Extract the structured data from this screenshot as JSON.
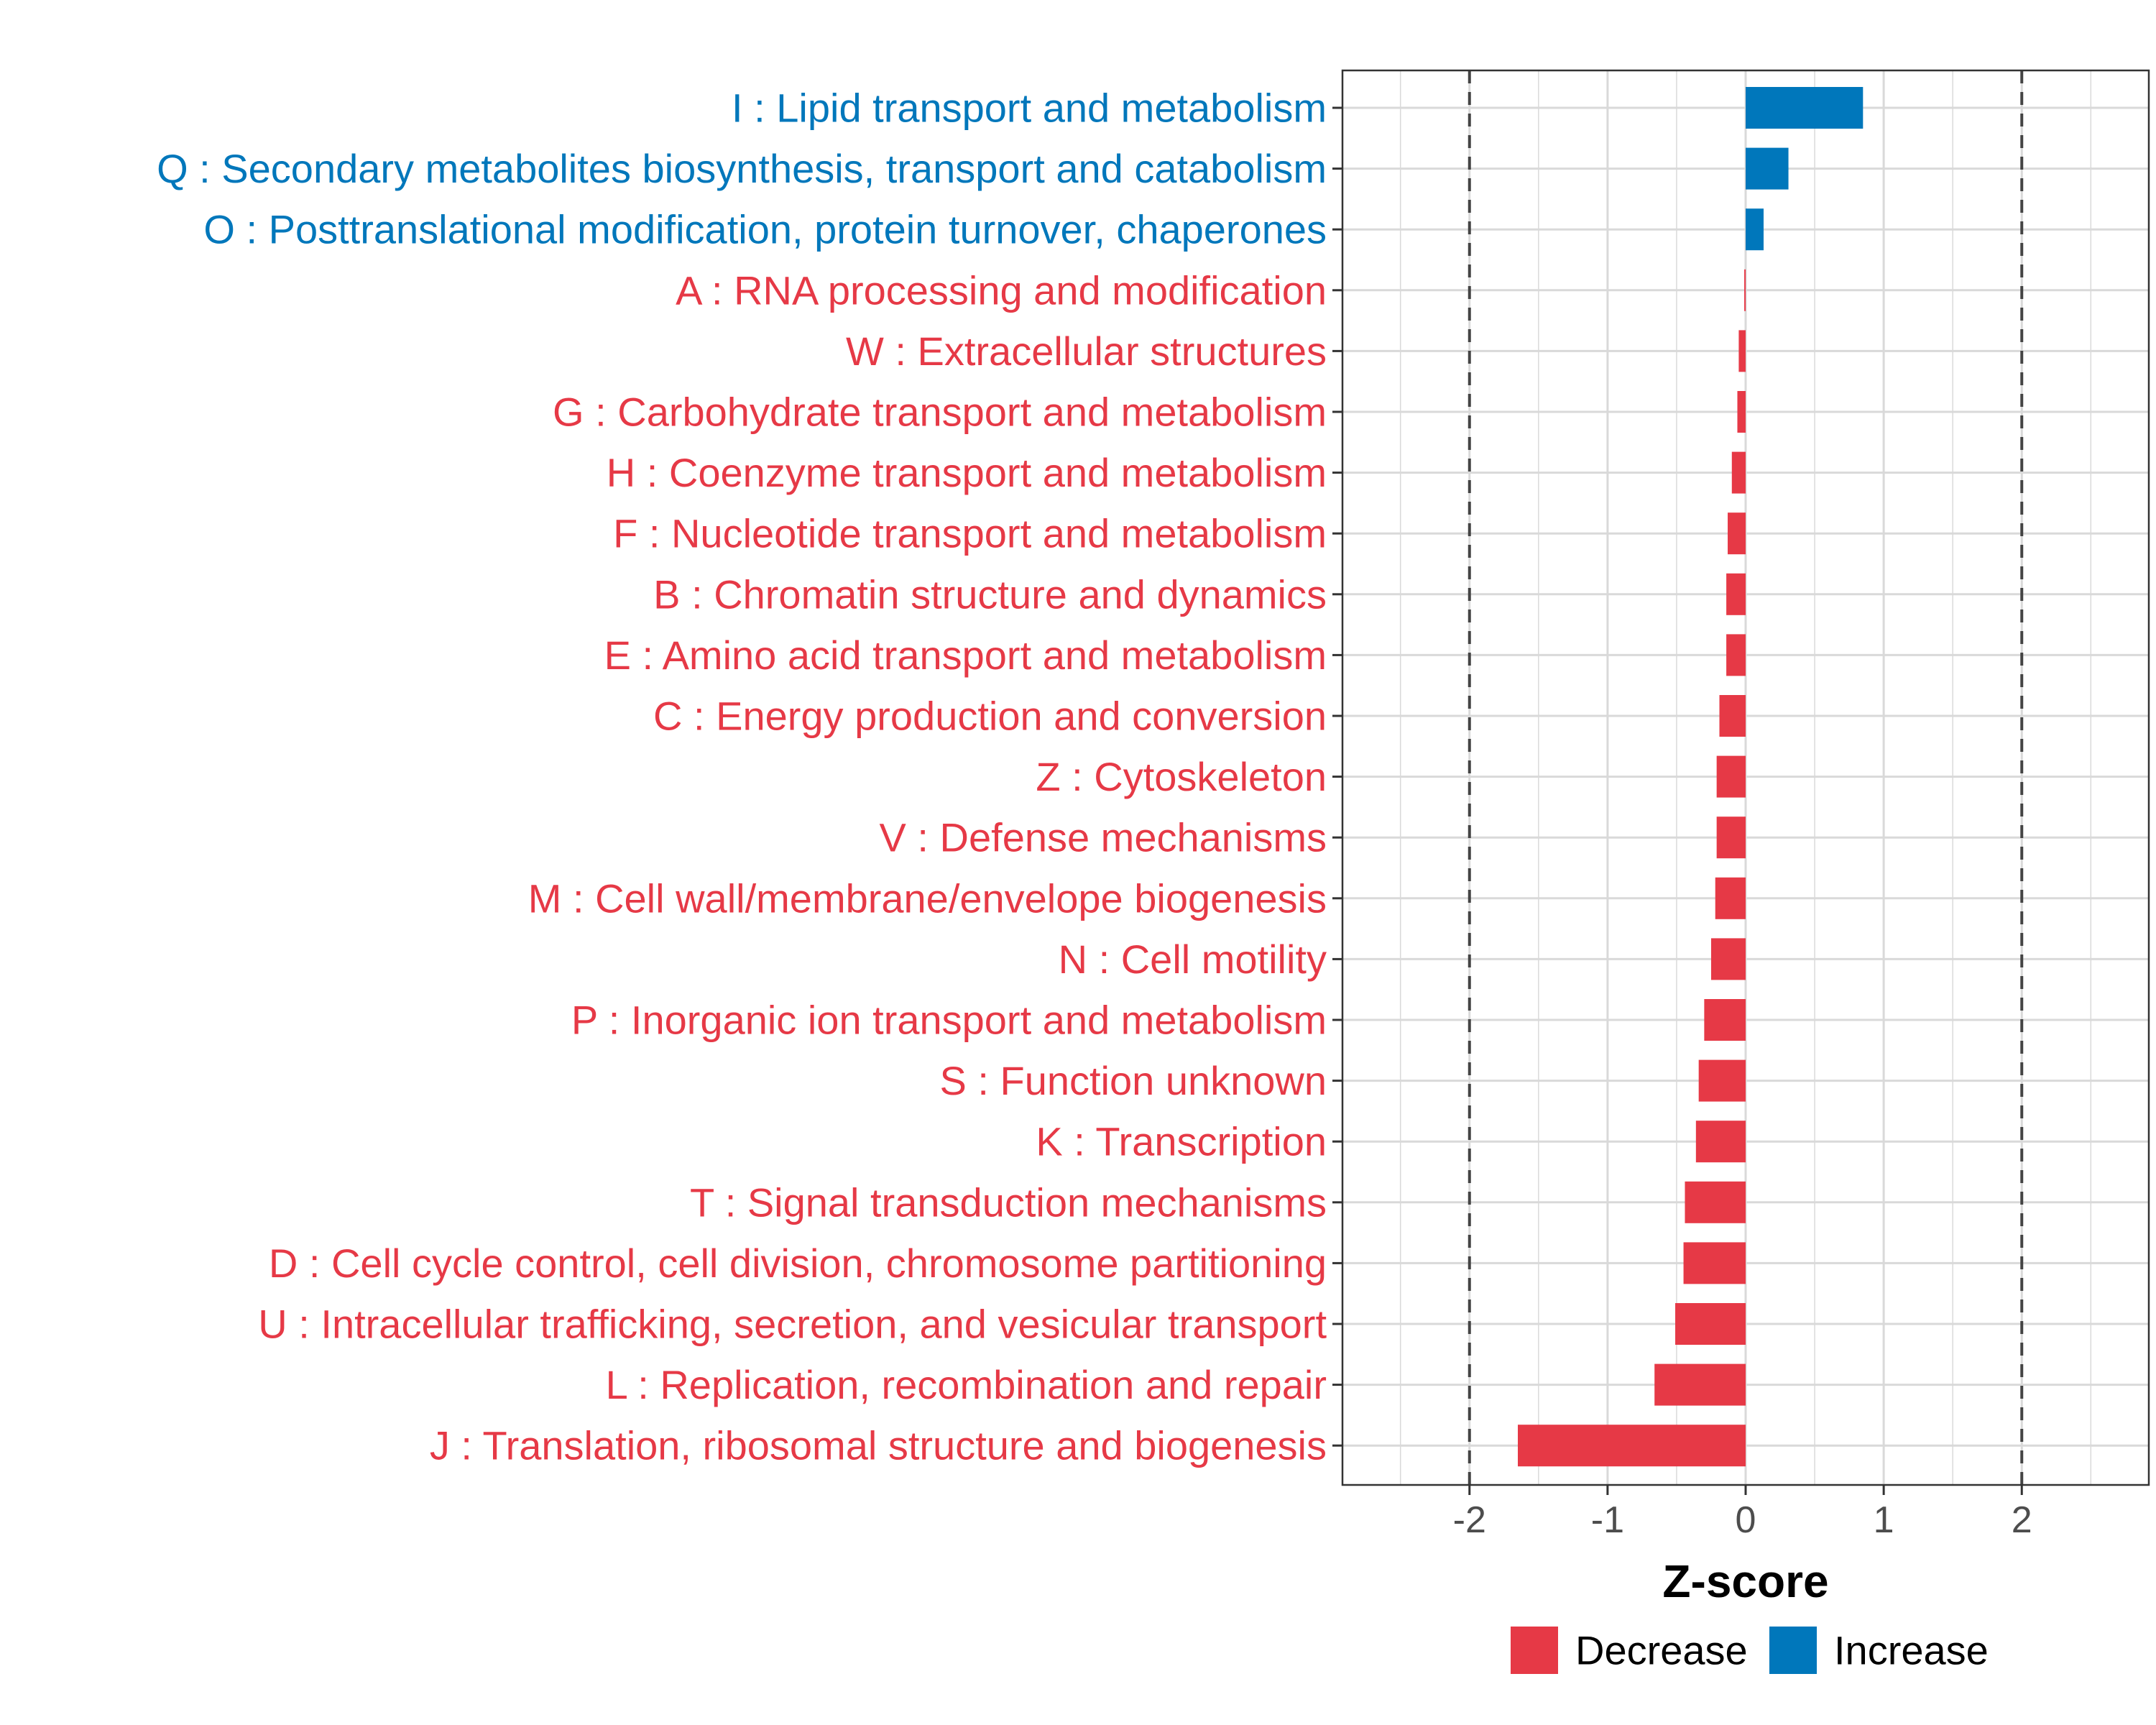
{
  "colors": {
    "decrease": "#E63946",
    "increase": "#0077BB",
    "grid": "#d9d9d9",
    "panel_border": "#333333",
    "reference_line": "#444444"
  },
  "chart_data": {
    "type": "bar",
    "orientation": "horizontal",
    "xlabel": "Z-score",
    "ylabel": "",
    "xlim": [
      -2.92,
      2.92
    ],
    "xticks": [
      -2,
      -1,
      0,
      1,
      2
    ],
    "xtick_labels": [
      "-2",
      "-1",
      "0",
      "1",
      "2"
    ],
    "reference_lines": [
      -2,
      2
    ],
    "grid": true,
    "legend_position": "bottom",
    "legend": [
      {
        "key": "decrease",
        "label": "Decrease"
      },
      {
        "key": "increase",
        "label": "Increase"
      }
    ],
    "categories": [
      "I : Lipid transport and metabolism",
      "Q : Secondary metabolites biosynthesis, transport and catabolism",
      "O : Posttranslational modification, protein turnover, chaperones",
      "A : RNA processing and modification",
      "W : Extracellular structures",
      "G : Carbohydrate transport and metabolism",
      "H : Coenzyme transport and metabolism",
      "F : Nucleotide transport and metabolism",
      "B : Chromatin structure and dynamics",
      "E : Amino acid transport and metabolism",
      "C : Energy production and conversion",
      "Z : Cytoskeleton",
      "V : Defense mechanisms",
      "M : Cell wall/membrane/envelope biogenesis",
      "N : Cell motility",
      "P : Inorganic ion transport and metabolism",
      "S : Function unknown",
      "K : Transcription",
      "T : Signal transduction mechanisms",
      "D : Cell cycle control, cell division, chromosome partitioning",
      "U : Intracellular trafficking, secretion, and vesicular transport",
      "L : Replication, recombination and repair",
      "J : Translation, ribosomal structure and biogenesis"
    ],
    "values": [
      0.85,
      0.31,
      0.13,
      -0.01,
      -0.05,
      -0.06,
      -0.1,
      -0.13,
      -0.14,
      -0.14,
      -0.19,
      -0.21,
      -0.21,
      -0.22,
      -0.25,
      -0.3,
      -0.34,
      -0.36,
      -0.44,
      -0.45,
      -0.51,
      -0.66,
      -1.65
    ],
    "direction": [
      "increase",
      "increase",
      "increase",
      "decrease",
      "decrease",
      "decrease",
      "decrease",
      "decrease",
      "decrease",
      "decrease",
      "decrease",
      "decrease",
      "decrease",
      "decrease",
      "decrease",
      "decrease",
      "decrease",
      "decrease",
      "decrease",
      "decrease",
      "decrease",
      "decrease",
      "decrease"
    ]
  }
}
